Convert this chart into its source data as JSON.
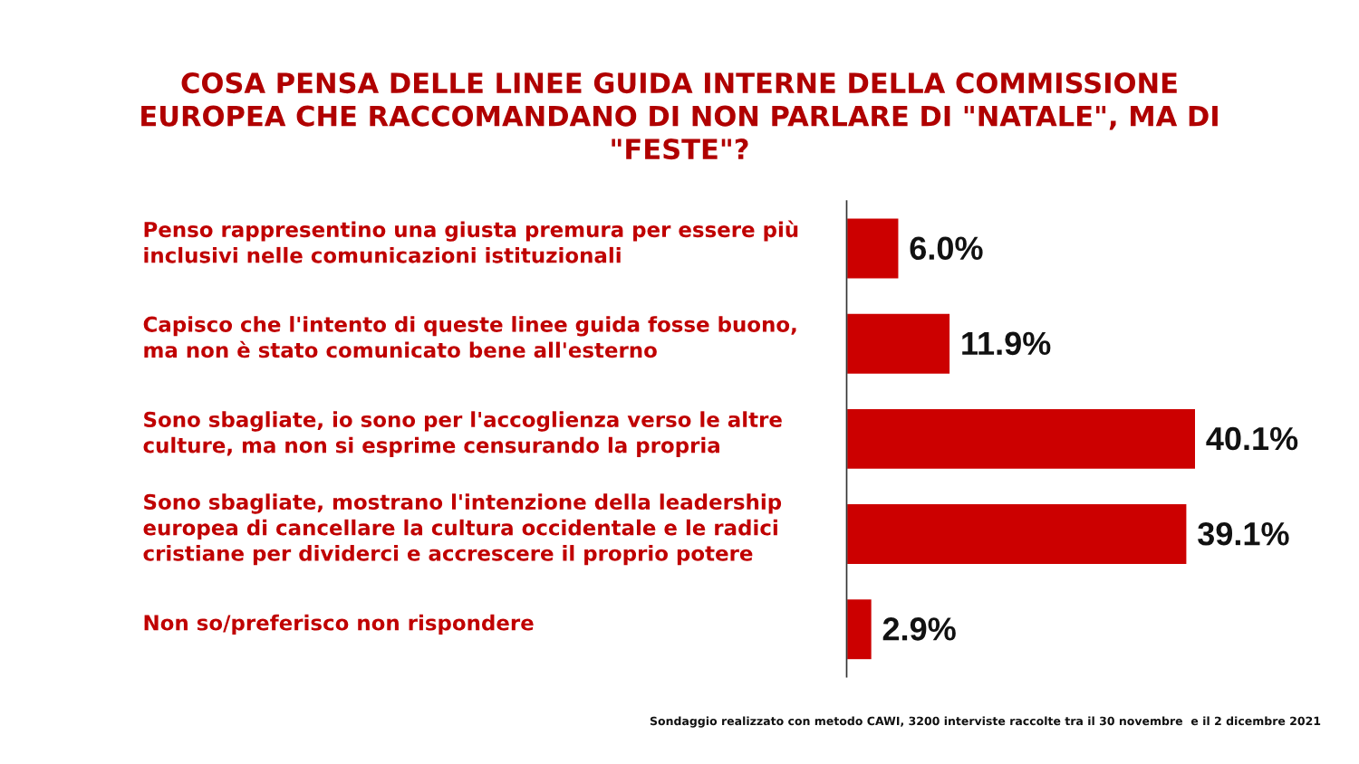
{
  "chart_data": {
    "type": "bar",
    "orientation": "horizontal",
    "title": "COSA PENSA DELLE LINEE GUIDA INTERNE DELLA COMMISSIONE\nEUROPEA CHE RACCOMANDANO DI NON PARLARE DI \"NATALE\", MA DI\n\"FESTE\"?",
    "categories": [
      "Penso rappresentino una giusta premura per essere più\ninclusivi nelle comunicazioni istituzionali",
      "Capisco che l'intento di queste linee guida fosse buono,\nma non è stato comunicato bene all'esterno",
      "Sono sbagliate, io sono per l'accoglienza verso le altre\nculture, ma non si esprime censurando la propria",
      "Sono sbagliate, mostrano l'intenzione della leadership\neuropea di cancellare la cultura occidentale e le radici\ncristiane per dividerci e accrescere il proprio potere",
      "Non so/preferisco non rispondere"
    ],
    "values": [
      6.0,
      11.9,
      40.1,
      39.1,
      2.9
    ],
    "value_labels": [
      "6.0%",
      "11.9%",
      "40.1%",
      "39.1%",
      "2.9%"
    ],
    "color": "#cc0000",
    "annotations": [
      "Sondaggio realizzato con metodo CAWI, 3200 interviste raccolte tra il 30 novembre  e il 2 dicembre 2021"
    ]
  }
}
